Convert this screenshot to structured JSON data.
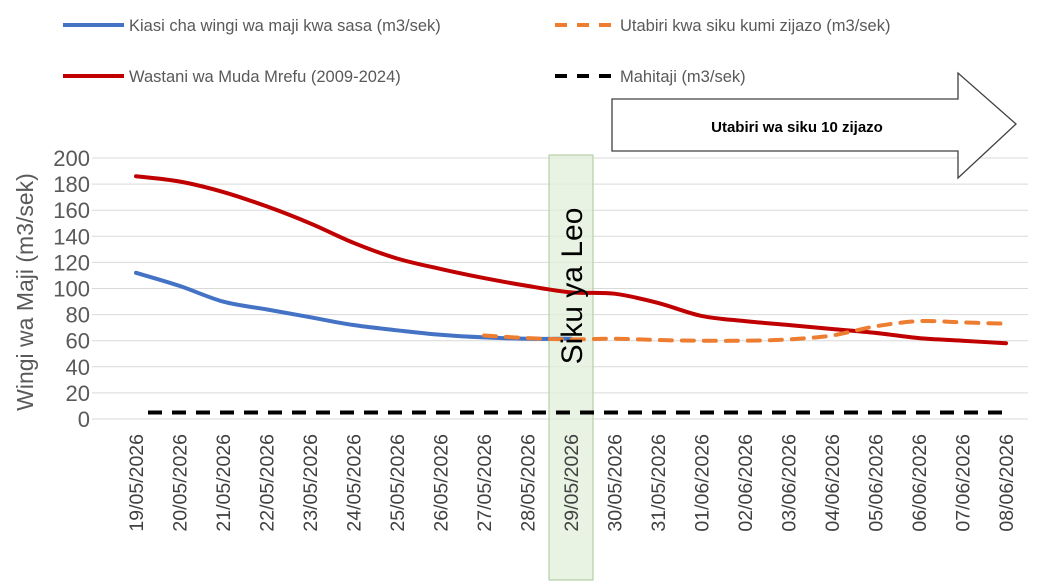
{
  "chart_data": {
    "type": "line",
    "ylabel": "Wingi wa Maji (m3/sek)",
    "xlabel": "",
    "ylim": [
      0,
      200
    ],
    "yticks": [
      0,
      20,
      40,
      60,
      80,
      100,
      120,
      140,
      160,
      180,
      200
    ],
    "grid": true,
    "legend_position": "top",
    "categories": [
      "19/05/2026",
      "20/05/2026",
      "21/05/2026",
      "22/05/2026",
      "23/05/2026",
      "24/05/2026",
      "25/05/2026",
      "26/05/2026",
      "27/05/2026",
      "28/05/2026",
      "29/05/2026",
      "30/05/2026",
      "31/05/2026",
      "01/06/2026",
      "02/06/2026",
      "03/06/2026",
      "04/06/2026",
      "05/06/2026",
      "06/06/2026",
      "07/06/2026",
      "08/06/2026"
    ],
    "series": [
      {
        "name": "Kiasi cha wingi wa maji kwa sasa (m3/sek)",
        "color": "#4472C4",
        "dash": "solid",
        "values": [
          112,
          102,
          90,
          84,
          78,
          72,
          68,
          64.5,
          62.5,
          61.5,
          61.5,
          null,
          null,
          null,
          null,
          null,
          null,
          null,
          null,
          null,
          null
        ]
      },
      {
        "name": "Utabiri kwa siku kumi zijazo (m3/sek)",
        "color": "#ED7D31",
        "dash": "dashed",
        "values": [
          null,
          null,
          null,
          null,
          null,
          null,
          null,
          null,
          64,
          62,
          61,
          61.5,
          60.5,
          60,
          60,
          61,
          64,
          71,
          75,
          74,
          73
        ]
      },
      {
        "name": "Wastani wa Muda Mrefu (2009-2024)",
        "color": "#C00000",
        "dash": "solid",
        "values": [
          186,
          182,
          174,
          163,
          150,
          135,
          123,
          115,
          108,
          102,
          97,
          96,
          89,
          79,
          75,
          72,
          69,
          66,
          62,
          60,
          58
        ]
      },
      {
        "name": "Mahitaji (m3/sek)",
        "color": "#000000",
        "dash": "dashed",
        "values": [
          5,
          5,
          5,
          5,
          5,
          5,
          5,
          5,
          5,
          5,
          5,
          5,
          5,
          5,
          5,
          5,
          5,
          5,
          5,
          5,
          5
        ]
      }
    ],
    "annotations": {
      "today_label": "Siku ya Leo",
      "today_category": "29/05/2026",
      "highlight_color": "#E2EFD9",
      "forecast_arrow_label": "Utabiri wa siku 10 zijazo"
    }
  }
}
